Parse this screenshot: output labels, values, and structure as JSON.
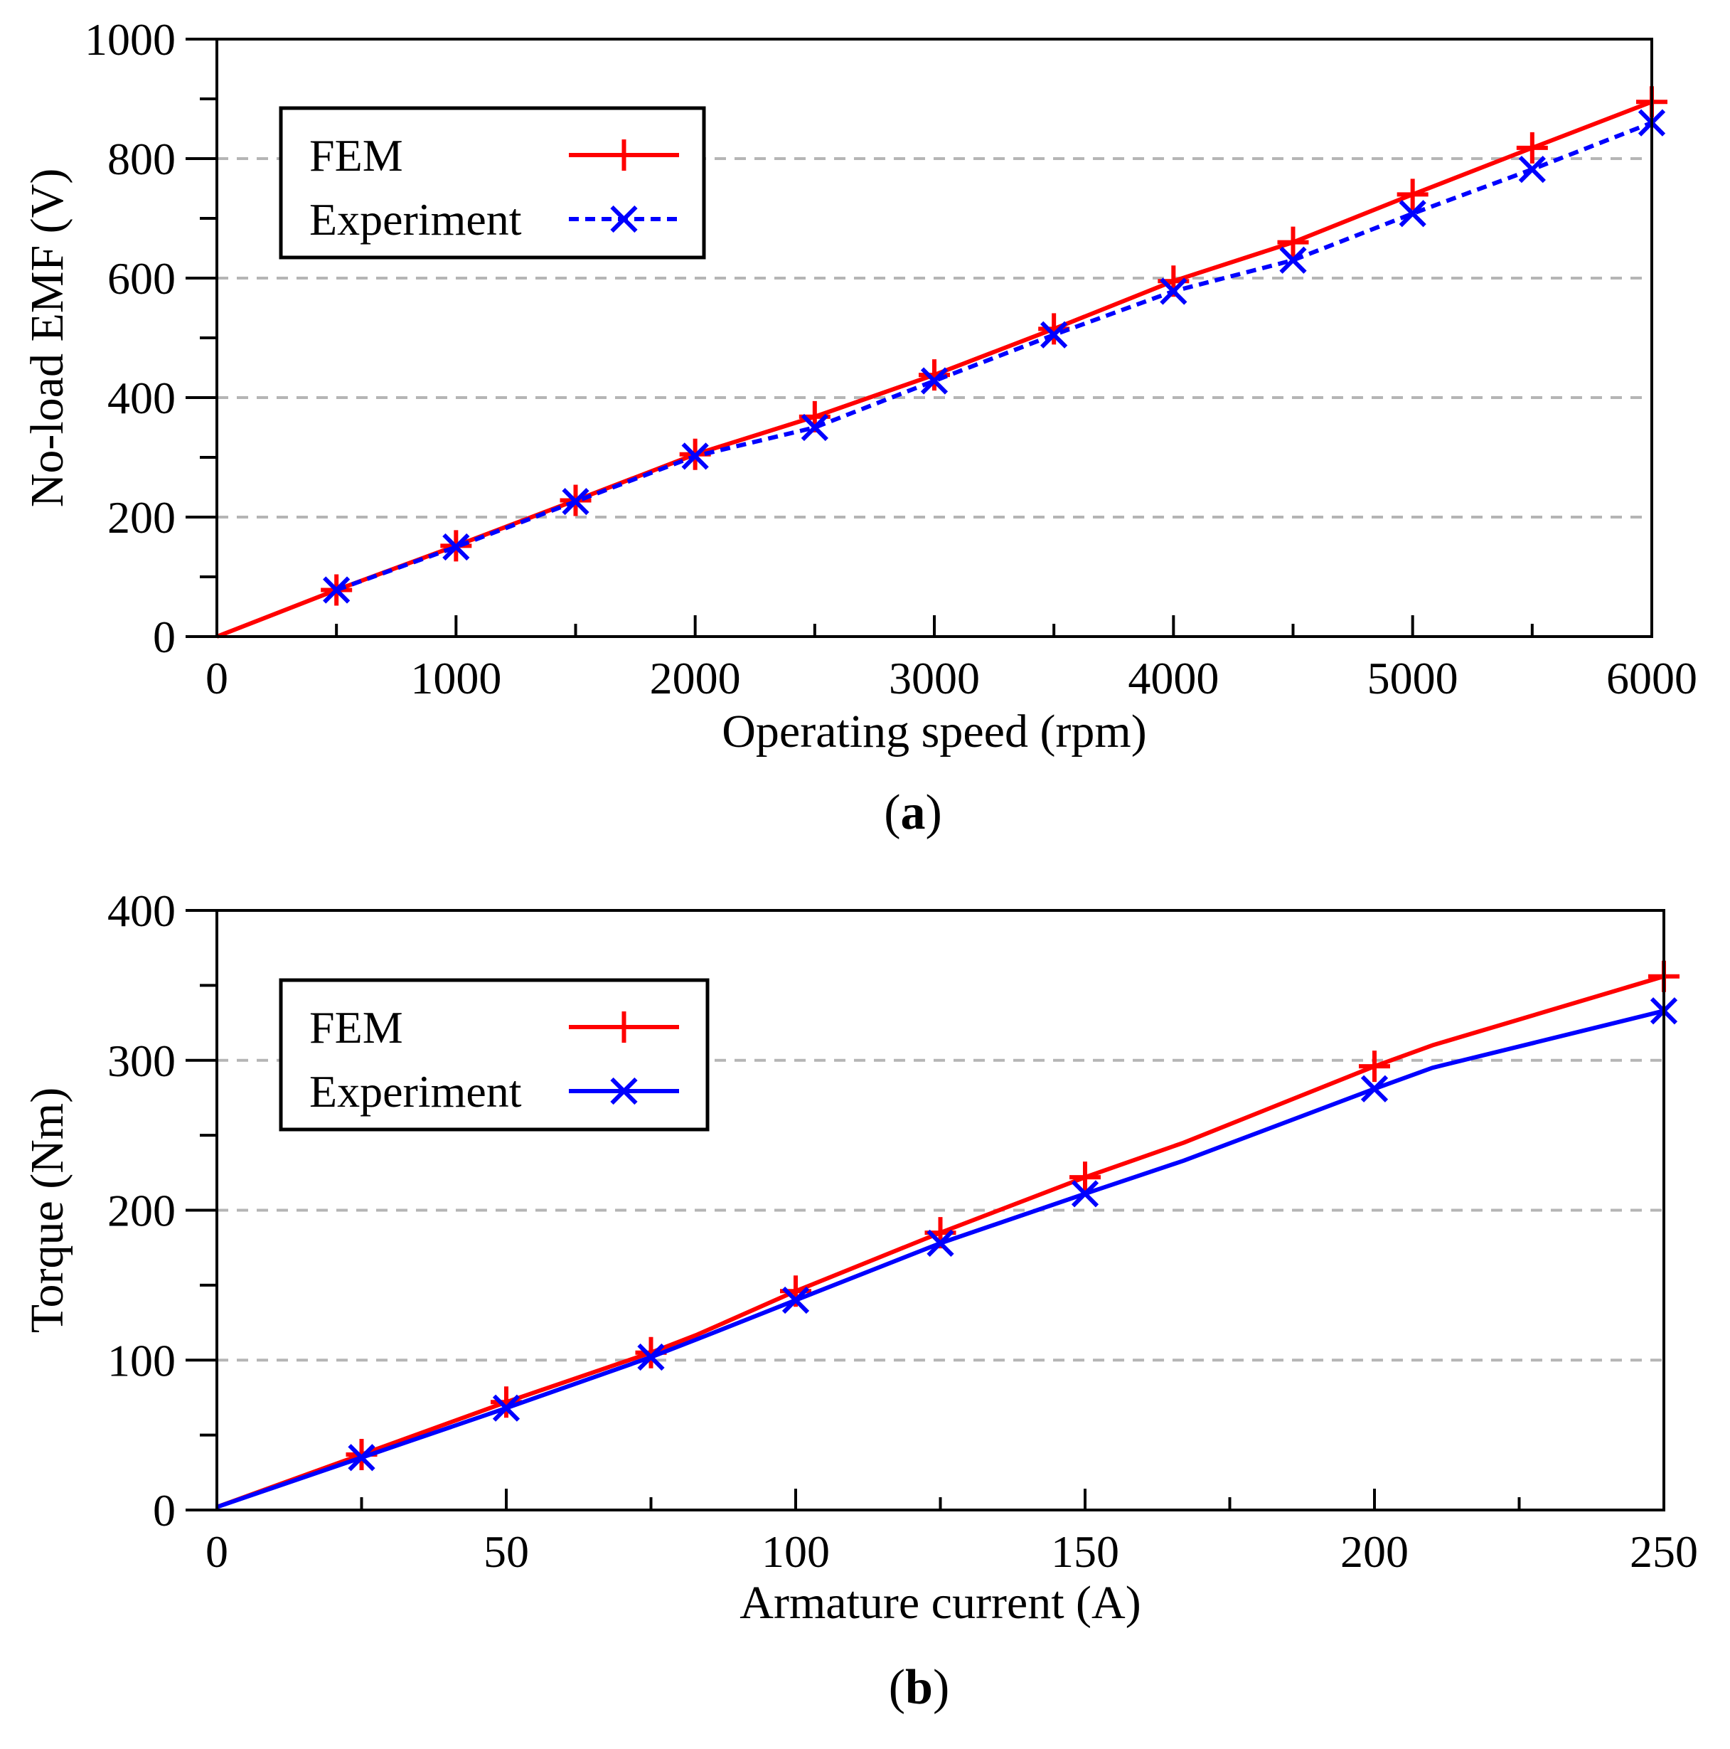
{
  "chart_data": [
    {
      "type": "line",
      "panel": "a",
      "caption_letter": "a",
      "xlabel": "Operating speed (rpm)",
      "ylabel": "No-load EMF (V)",
      "xlim": [
        0,
        6000
      ],
      "ylim": [
        0,
        1000
      ],
      "xticks": [
        0,
        1000,
        2000,
        3000,
        4000,
        5000,
        6000
      ],
      "yticks": [
        0,
        200,
        400,
        600,
        800,
        1000
      ],
      "grid": "horizontal dashed at 200, 400, 600, 800",
      "legend_position": "top-left",
      "series": [
        {
          "name": "FEM",
          "color": "#ff0000",
          "line_style": "solid",
          "marker": "plus",
          "x": [
            0,
            500,
            1000,
            1500,
            2000,
            2500,
            3000,
            3500,
            4000,
            4500,
            5000,
            5500,
            6000
          ],
          "y": [
            0,
            78,
            152,
            228,
            305,
            368,
            438,
            515,
            595,
            660,
            740,
            818,
            895
          ],
          "marker_x": [
            500,
            1000,
            1500,
            2000,
            2500,
            3000,
            3500,
            4000,
            4500,
            5000,
            5500,
            6000
          ]
        },
        {
          "name": "Experiment",
          "color": "#0000ff",
          "line_style": "dashed",
          "marker": "cross",
          "x": [
            500,
            1000,
            1500,
            2000,
            2500,
            3000,
            3500,
            4000,
            4500,
            5000,
            5500,
            6000
          ],
          "y": [
            78,
            150,
            226,
            302,
            350,
            428,
            505,
            578,
            630,
            708,
            782,
            860
          ],
          "marker_x": [
            500,
            1000,
            1500,
            2000,
            2500,
            3000,
            3500,
            4000,
            4500,
            5000,
            5500,
            6000
          ]
        }
      ]
    },
    {
      "type": "line",
      "panel": "b",
      "caption_letter": "b",
      "xlabel": "Armature current (A)",
      "ylabel": "Torque (Nm)",
      "xlim": [
        0,
        250
      ],
      "ylim": [
        0,
        400
      ],
      "xticks": [
        0,
        50,
        100,
        150,
        200,
        250
      ],
      "yticks": [
        0,
        100,
        200,
        300,
        400
      ],
      "grid": "horizontal dashed at 100, 200, 300",
      "legend_position": "top-left",
      "series": [
        {
          "name": "FEM",
          "color": "#ff0000",
          "line_style": "solid",
          "marker": "plus",
          "x": [
            0,
            25,
            50,
            75,
            83,
            100,
            125,
            150,
            167,
            200,
            210,
            250
          ],
          "y": [
            2,
            37,
            72,
            105,
            117,
            146,
            185,
            222,
            245,
            296,
            310,
            356
          ],
          "marker_x": [
            25,
            50,
            75,
            100,
            125,
            150,
            200,
            250
          ]
        },
        {
          "name": "Experiment",
          "color": "#0000ff",
          "line_style": "solid",
          "marker": "cross",
          "x": [
            0,
            25,
            50,
            75,
            83,
            100,
            125,
            150,
            167,
            200,
            210,
            250
          ],
          "y": [
            2,
            35,
            68,
            102,
            114,
            140,
            178,
            211,
            233,
            281,
            295,
            333
          ],
          "marker_x": [
            25,
            50,
            75,
            100,
            125,
            150,
            200,
            250
          ]
        }
      ]
    }
  ]
}
